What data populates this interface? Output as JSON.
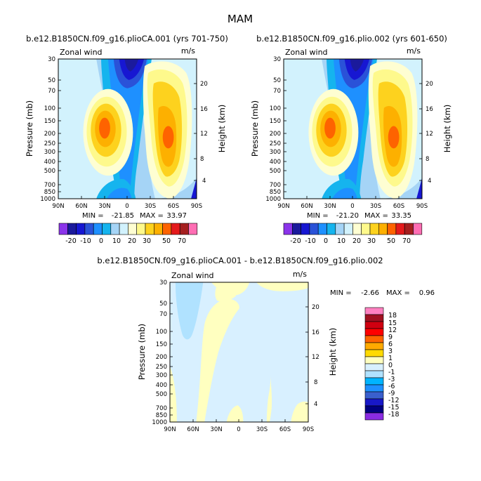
{
  "figure_title": "MAM",
  "chart_data": [
    {
      "type": "heatmap",
      "title": "b.e12.B1850CN.f09_g16.plioCA.001 (yrs 701-750)",
      "left_label": "Zonal wind",
      "units": "m/s",
      "ylabel": "Pressure (mb)",
      "ylabel_right": "Height (km)",
      "x_ticks": [
        "90N",
        "60N",
        "30N",
        "0",
        "30S",
        "60S",
        "90S"
      ],
      "y_ticks": [
        "30",
        "50",
        "70",
        "100",
        "150",
        "200",
        "250",
        "300",
        "400",
        "500",
        "700",
        "850",
        "1000"
      ],
      "y_ticks_right": [
        "20",
        "16",
        "12",
        "8",
        "4"
      ],
      "ylim": [
        1000,
        30
      ],
      "stats": {
        "min_label": "MIN =",
        "min": "-21.85",
        "max_label": "MAX =",
        "max": "33.97"
      },
      "levels": [
        -25,
        -20,
        -15,
        -10,
        -5,
        0,
        5,
        10,
        15,
        20,
        25,
        30,
        40,
        50,
        60,
        70
      ],
      "colorbar_labels": [
        "-20",
        "-10",
        "0",
        "10",
        "20",
        "30",
        "50",
        "70"
      ]
    },
    {
      "type": "heatmap",
      "title": "b.e12.B1850CN.f09_g16.plio.002 (yrs 601-650)",
      "left_label": "Zonal wind",
      "units": "m/s",
      "ylabel": "Pressure (mb)",
      "ylabel_right": "Height (km)",
      "x_ticks": [
        "90N",
        "60N",
        "30N",
        "0",
        "30S",
        "60S",
        "90S"
      ],
      "y_ticks": [
        "30",
        "50",
        "70",
        "100",
        "150",
        "200",
        "250",
        "300",
        "400",
        "500",
        "700",
        "850",
        "1000"
      ],
      "y_ticks_right": [
        "20",
        "16",
        "12",
        "8",
        "4"
      ],
      "ylim": [
        1000,
        30
      ],
      "stats": {
        "min_label": "MIN =",
        "min": "-21.20",
        "max_label": "MAX =",
        "max": "33.35"
      },
      "levels": [
        -25,
        -20,
        -15,
        -10,
        -5,
        0,
        5,
        10,
        15,
        20,
        25,
        30,
        40,
        50,
        60,
        70
      ],
      "colorbar_labels": [
        "-20",
        "-10",
        "0",
        "10",
        "20",
        "30",
        "50",
        "70"
      ]
    },
    {
      "type": "heatmap",
      "title": "b.e12.B1850CN.f09_g16.plioCA.001 - b.e12.B1850CN.f09_g16.plio.002",
      "left_label": "Zonal wind",
      "units": "m/s",
      "ylabel": "Pressure (mb)",
      "ylabel_right": "Height (km)",
      "x_ticks": [
        "90N",
        "60N",
        "30N",
        "0",
        "30S",
        "60S",
        "90S"
      ],
      "y_ticks": [
        "30",
        "50",
        "70",
        "100",
        "150",
        "200",
        "250",
        "300",
        "400",
        "500",
        "700",
        "850",
        "1000"
      ],
      "y_ticks_right": [
        "20",
        "16",
        "12",
        "8",
        "4"
      ],
      "ylim": [
        1000,
        30
      ],
      "stats": {
        "min_label": "MIN =",
        "min": "-2.66",
        "max_label": "MAX =",
        "max": "0.96"
      },
      "levels": [
        -18,
        -15,
        -12,
        -9,
        -6,
        -3,
        -1,
        0,
        1,
        3,
        6,
        9,
        12,
        15,
        18
      ],
      "colorbar_labels": [
        "18",
        "15",
        "12",
        "9",
        "6",
        "3",
        "1",
        "0",
        "-1",
        "-3",
        "-6",
        "-9",
        "-12",
        "-15",
        "-18"
      ]
    }
  ],
  "colors": {
    "mean_palette": [
      "#8b34ea",
      "#1b1a9c",
      "#1717d2",
      "#2a52d8",
      "#1e90ff",
      "#15b4ee",
      "#a5d4f6",
      "#d2f2fd",
      "#fefed2",
      "#fef98c",
      "#fdd21e",
      "#fdb000",
      "#fe6300",
      "#e41a1c",
      "#a51f1f",
      "#ff6eb4"
    ],
    "diff_palette": [
      "#ff80c0",
      "#a01020",
      "#d00010",
      "#ff0000",
      "#ff6400",
      "#ffaa00",
      "#ffda00",
      "#ffffc0",
      "#d8f0ff",
      "#b0e2ff",
      "#00b4ff",
      "#1e90ff",
      "#3a5fcd",
      "#1818c8",
      "#000080",
      "#8a2be2"
    ]
  }
}
